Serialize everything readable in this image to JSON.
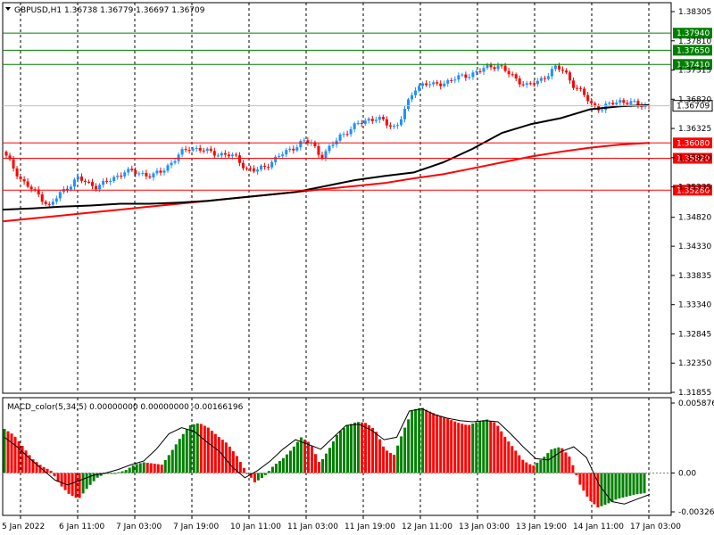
{
  "chart_data": [
    {
      "type": "candlestick",
      "title": "GBPUSD,H1  1.36738 1.36779 1.36697 1.36709",
      "symbol": "GBPUSD",
      "timeframe": "H1",
      "ohlc_header": {
        "open": 1.36738,
        "high": 1.36779,
        "low": 1.36697,
        "close": 1.36709
      },
      "ylim": [
        1.31855,
        1.38305
      ],
      "y_ticks": [
        "1.38305",
        "1.37810",
        "1.37315",
        "1.36820",
        "1.36325",
        "1.35830",
        "1.35335",
        "1.34820",
        "1.34330",
        "1.33835",
        "1.33340",
        "1.32845",
        "1.32350",
        "1.31855"
      ],
      "x_ticks": [
        "5 Jan 2022",
        "6 Jan 11:00",
        "7 Jan 03:00",
        "7 Jan 19:00",
        "10 Jan 11:00",
        "11 Jan 03:00",
        "11 Jan 19:00",
        "12 Jan 11:00",
        "13 Jan 03:00",
        "13 Jan 19:00",
        "14 Jan 11:00",
        "17 Jan 03:00"
      ],
      "current_price": "1.36709",
      "horizontal_lines": [
        {
          "label": "1.37940",
          "value": 1.3794,
          "color": "#008000"
        },
        {
          "label": "1.37650",
          "value": 1.3765,
          "color": "#008000"
        },
        {
          "label": "1.37410",
          "value": 1.3741,
          "color": "#008000"
        },
        {
          "label": "1.36080",
          "value": 1.3608,
          "color": "#ff0000"
        },
        {
          "label": "1.35820",
          "value": 1.3582,
          "color": "#ff0000"
        },
        {
          "label": "1.35280",
          "value": 1.3528,
          "color": "#ff0000"
        }
      ],
      "price_path": [
        1.3593,
        1.357,
        1.3545,
        1.353,
        1.3518,
        1.35,
        1.352,
        1.3535,
        1.3548,
        1.354,
        1.3535,
        1.354,
        1.355,
        1.356,
        1.3558,
        1.3556,
        1.3552,
        1.356,
        1.3575,
        1.359,
        1.36,
        1.3598,
        1.3592,
        1.359,
        1.3588,
        1.3582,
        1.3565,
        1.356,
        1.3568,
        1.358,
        1.359,
        1.36,
        1.361,
        1.3608,
        1.3585,
        1.36,
        1.362,
        1.363,
        1.364,
        1.3648,
        1.365,
        1.364,
        1.3635,
        1.3665,
        1.37,
        1.371,
        1.3705,
        1.371,
        1.3715,
        1.372,
        1.3725,
        1.373,
        1.3738,
        1.374,
        1.3725,
        1.3715,
        1.3705,
        1.371,
        1.3722,
        1.3735,
        1.373,
        1.3705,
        1.369,
        1.3672,
        1.3665,
        1.3675,
        1.368,
        1.3675,
        1.3673,
        1.3671
      ],
      "up_color": "#1e90ff",
      "down_color": "#ff0000",
      "ma_black": {
        "color": "#000000",
        "values": [
          1.3495,
          1.3497,
          1.35,
          1.3502,
          1.3505,
          1.3505,
          1.3507,
          1.351,
          1.3515,
          1.352,
          1.3525,
          1.3535,
          1.3545,
          1.3552,
          1.3558,
          1.3575,
          1.3598,
          1.3625,
          1.364,
          1.365,
          1.3665,
          1.367,
          1.3672
        ]
      },
      "ma_red": {
        "color": "#ff0000",
        "values": [
          1.3475,
          1.348,
          1.3485,
          1.349,
          1.3495,
          1.35,
          1.3505,
          1.351,
          1.3515,
          1.352,
          1.3525,
          1.353,
          1.3535,
          1.354,
          1.3548,
          1.3555,
          1.3565,
          1.3575,
          1.3585,
          1.3593,
          1.36,
          1.3605,
          1.3608
        ]
      }
    },
    {
      "type": "bar",
      "title": "MACD_color(5,34,5) 0.00000000 0.00000000 -0.00166196",
      "ylim": [
        -0.00326,
        0.005876
      ],
      "y_ticks": [
        "0.0058761",
        "0.00",
        "-0.003262"
      ],
      "values": [
        0.0037,
        0.0032,
        0.0022,
        0.0012,
        0.0006,
        0.0002,
        -0.001,
        -0.0018,
        -0.0022,
        -0.0012,
        -0.0004,
        0.0,
        0.0,
        0.0002,
        0.0007,
        0.0009,
        0.0008,
        0.0007,
        0.0018,
        0.003,
        0.004,
        0.0042,
        0.0038,
        0.0031,
        0.0025,
        0.0015,
        0.0002,
        -0.0008,
        -0.0003,
        0.0006,
        0.0012,
        0.002,
        0.003,
        0.0025,
        0.0008,
        0.002,
        0.0034,
        0.004,
        0.0043,
        0.0042,
        0.0036,
        0.002,
        0.0015,
        0.0035,
        0.0053,
        0.0055,
        0.0051,
        0.0048,
        0.0045,
        0.0042,
        0.004,
        0.0043,
        0.0045,
        0.0042,
        0.003,
        0.002,
        0.001,
        0.0006,
        0.0012,
        0.002,
        0.0022,
        0.0013,
        -0.0009,
        -0.0022,
        -0.0029,
        -0.0026,
        -0.0022,
        -0.002,
        -0.0018,
        -0.0017
      ],
      "signal": [
        0.003,
        0.0022,
        0.0012,
        0.0003,
        -0.0006,
        -0.001,
        -0.0006,
        -0.0002,
        0.0,
        0.0003,
        0.0007,
        0.001,
        0.002,
        0.0033,
        0.0038,
        0.0035,
        0.0026,
        0.0018,
        0.0005,
        -0.0004,
        0.0002,
        0.001,
        0.002,
        0.0028,
        0.0024,
        0.002,
        0.003,
        0.004,
        0.0041,
        0.0036,
        0.0028,
        0.003,
        0.0052,
        0.0054,
        0.0049,
        0.0046,
        0.0044,
        0.0043,
        0.0044,
        0.0043,
        0.0033,
        0.0022,
        0.0012,
        0.0011,
        0.0018,
        0.0022,
        0.0013,
        -0.001,
        -0.0024,
        -0.0026,
        -0.0022,
        -0.0018
      ],
      "green_color": "#008000",
      "red_color": "#ff0000",
      "signal_color": "#000000"
    }
  ]
}
